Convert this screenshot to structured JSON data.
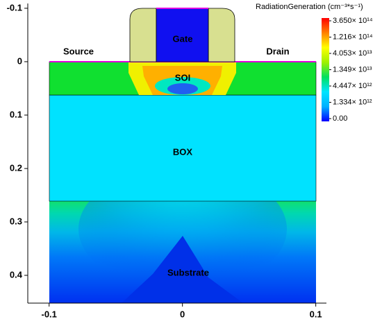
{
  "chart_data": {
    "type": "contour",
    "xlim": [
      -0.116,
      0.108
    ],
    "ylim": [
      0.452,
      -0.109
    ],
    "xticks": [
      -0.1,
      0,
      0.1
    ],
    "yticks": [
      -0.1,
      0,
      0.1,
      0.2,
      0.3,
      0.4
    ],
    "colorbar": {
      "title": "RadiationGeneration (cm⁻³*s⁻¹)",
      "colors": [
        "#0000ff",
        "#00b0ff",
        "#00e5ff",
        "#00e060",
        "#a0f000",
        "#ffff00",
        "#ff8000",
        "#ff0000"
      ],
      "ticks": [
        {
          "value": 0,
          "label": "0.00"
        },
        {
          "value": 1334000000000,
          "label": "1.334× 10¹²"
        },
        {
          "value": 4447000000000,
          "label": "4.447× 10¹²"
        },
        {
          "value": 13490000000000,
          "label": "1.349× 10¹³"
        },
        {
          "value": 40530000000000,
          "label": "4.053× 10¹³"
        },
        {
          "value": 121600000000000,
          "label": "1.216× 10¹⁴"
        },
        {
          "value": 365000000000000,
          "label": "3.650× 10¹⁴"
        }
      ]
    },
    "annotations": {
      "gate": "Gate",
      "soi": "SOI",
      "box": "BOX",
      "source": "Source",
      "drain": "Drain",
      "substrate": "Substrate"
    }
  }
}
